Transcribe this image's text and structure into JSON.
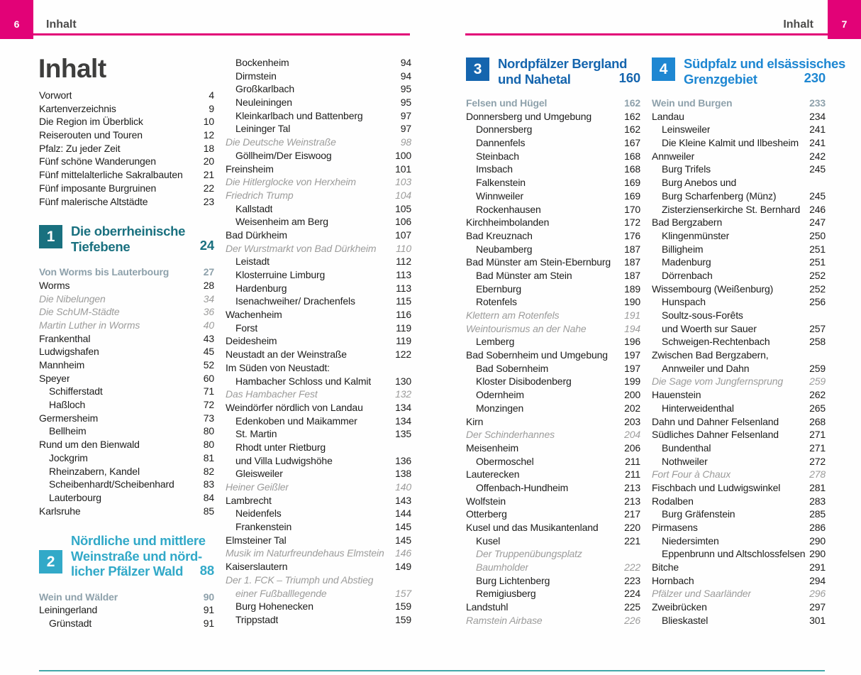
{
  "page": {
    "title": "Inhalt",
    "left_page_num": "6",
    "left_header_label": "Inhalt",
    "right_page_num": "7",
    "right_header_label": "Inhalt"
  },
  "colors": {
    "magenta": "#e20277",
    "header_text": "#4c4c4b",
    "chapter1": "#19707f",
    "chapter2": "#32a9c8",
    "chapter3": "#1565ae",
    "chapter4": "#1e87d2",
    "group_heading": "#8ea1ab",
    "entry_text": "#1c1c1b",
    "insert_italic": "#9c9c9b",
    "bottom_rule": "#43a6a8"
  },
  "columns": {
    "col1": [
      {
        "t": "e",
        "l": 0,
        "n": "Vorwort",
        "p": "4"
      },
      {
        "t": "e",
        "l": 0,
        "n": "Kartenverzeichnis",
        "p": "9"
      },
      {
        "t": "e",
        "l": 0,
        "n": "Die Region im Überblick",
        "p": "10"
      },
      {
        "t": "e",
        "l": 0,
        "n": "Reiserouten und Touren",
        "p": "12"
      },
      {
        "t": "e",
        "l": 0,
        "n": "Pfalz: Zu jeder Zeit",
        "p": "18"
      },
      {
        "t": "e",
        "l": 0,
        "n": "Fünf schöne Wanderungen",
        "p": "20"
      },
      {
        "t": "e",
        "l": 0,
        "n": "Fünf mittelalterliche Sakralbauten",
        "p": "21"
      },
      {
        "t": "e",
        "l": 0,
        "n": "Fünf imposante Burgruinen",
        "p": "22"
      },
      {
        "t": "e",
        "l": 0,
        "n": "Fünf malerische Altstädte",
        "p": "23"
      },
      {
        "t": "g",
        "h": 22
      },
      {
        "t": "s",
        "num": "1",
        "lines": [
          "Die oberrheinische",
          "Tiefebene"
        ],
        "p": "24",
        "c": "chapter1"
      },
      {
        "t": "g",
        "h": 16
      },
      {
        "t": "h",
        "n": "Von Worms bis Lauterbourg",
        "p": "27"
      },
      {
        "t": "e",
        "l": 0,
        "n": "Worms",
        "p": "28"
      },
      {
        "t": "i",
        "l": 0,
        "n": "Die Nibelungen",
        "p": "34"
      },
      {
        "t": "i",
        "l": 0,
        "n": "Die SchUM-Städte",
        "p": "36"
      },
      {
        "t": "i",
        "l": 0,
        "n": "Martin Luther in Worms",
        "p": "40"
      },
      {
        "t": "e",
        "l": 0,
        "n": "Frankenthal",
        "p": "43"
      },
      {
        "t": "e",
        "l": 0,
        "n": "Ludwigshafen",
        "p": "45"
      },
      {
        "t": "e",
        "l": 0,
        "n": "Mannheim",
        "p": "52"
      },
      {
        "t": "e",
        "l": 0,
        "n": "Speyer",
        "p": "60"
      },
      {
        "t": "e",
        "l": 1,
        "n": "Schifferstadt",
        "p": "71"
      },
      {
        "t": "e",
        "l": 1,
        "n": "Haßloch",
        "p": "72"
      },
      {
        "t": "e",
        "l": 0,
        "n": "Germersheim",
        "p": "73"
      },
      {
        "t": "e",
        "l": 1,
        "n": "Bellheim",
        "p": "80"
      },
      {
        "t": "e",
        "l": 0,
        "n": "Rund um den Bienwald",
        "p": "80"
      },
      {
        "t": "e",
        "l": 1,
        "n": "Jockgrim",
        "p": "81"
      },
      {
        "t": "e",
        "l": 1,
        "n": "Rheinzabern, Kandel",
        "p": "82"
      },
      {
        "t": "e",
        "l": 1,
        "n": "Scheibenhardt/Scheibenhard",
        "p": "83"
      },
      {
        "t": "e",
        "l": 1,
        "n": "Lauterbourg",
        "p": "84"
      },
      {
        "t": "e",
        "l": 0,
        "n": "Karlsruhe",
        "p": "85"
      },
      {
        "t": "g",
        "h": 22
      },
      {
        "t": "s",
        "num": "2",
        "lines": [
          "Nördliche und mittlere",
          "Weinstraße und nörd-",
          "licher Pfälzer Wald"
        ],
        "p": "88",
        "c": "chapter2"
      },
      {
        "t": "g",
        "h": 16
      },
      {
        "t": "h",
        "n": "Wein und Wälder",
        "p": "90"
      },
      {
        "t": "e",
        "l": 0,
        "n": "Leiningerland",
        "p": "91"
      },
      {
        "t": "e",
        "l": 1,
        "n": "Grünstadt",
        "p": "91"
      }
    ],
    "col2": [
      {
        "t": "e",
        "l": 1,
        "n": "Bockenheim",
        "p": "94"
      },
      {
        "t": "e",
        "l": 1,
        "n": "Dirmstein",
        "p": "94"
      },
      {
        "t": "e",
        "l": 1,
        "n": "Großkarlbach",
        "p": "95"
      },
      {
        "t": "e",
        "l": 1,
        "n": "Neuleiningen",
        "p": "95"
      },
      {
        "t": "e",
        "l": 1,
        "n": "Kleinkarlbach und Battenberg",
        "p": "97"
      },
      {
        "t": "e",
        "l": 1,
        "n": "Leininger Tal",
        "p": "97"
      },
      {
        "t": "i",
        "l": 0,
        "n": "Die Deutsche Weinstraße",
        "p": "98"
      },
      {
        "t": "e",
        "l": 1,
        "n": "Göllheim/Der Eiswoog",
        "p": "100"
      },
      {
        "t": "e",
        "l": 0,
        "n": "Freinsheim",
        "p": "101"
      },
      {
        "t": "i",
        "l": 0,
        "n": "Die Hitlerglocke von Herxheim",
        "p": "103"
      },
      {
        "t": "i",
        "l": 0,
        "n": "Friedrich Trump",
        "p": "104"
      },
      {
        "t": "e",
        "l": 1,
        "n": "Kallstadt",
        "p": "105"
      },
      {
        "t": "e",
        "l": 1,
        "n": "Weisenheim am Berg",
        "p": "106"
      },
      {
        "t": "e",
        "l": 0,
        "n": "Bad Dürkheim",
        "p": "107"
      },
      {
        "t": "i",
        "l": 0,
        "n": "Der Wurstmarkt von Bad Dürkheim",
        "p": "110"
      },
      {
        "t": "e",
        "l": 1,
        "n": "Leistadt",
        "p": "112"
      },
      {
        "t": "e",
        "l": 1,
        "n": "Klosterruine Limburg",
        "p": "113"
      },
      {
        "t": "e",
        "l": 1,
        "n": "Hardenburg",
        "p": "113"
      },
      {
        "t": "e",
        "l": 1,
        "n": "Isenachweiher/ Drachenfels",
        "p": "115"
      },
      {
        "t": "e",
        "l": 0,
        "n": "Wachenheim",
        "p": "116"
      },
      {
        "t": "e",
        "l": 1,
        "n": "Forst",
        "p": "119"
      },
      {
        "t": "e",
        "l": 0,
        "n": "Deidesheim",
        "p": "119"
      },
      {
        "t": "e",
        "l": 0,
        "n": "Neustadt an der Weinstraße",
        "p": "122"
      },
      {
        "t": "e",
        "l": 0,
        "n": "Im Süden von Neustadt:",
        "p": ""
      },
      {
        "t": "e",
        "l": 1,
        "n": "Hambacher Schloss und Kalmit",
        "p": "130"
      },
      {
        "t": "i",
        "l": 0,
        "n": "Das Hambacher Fest",
        "p": "132"
      },
      {
        "t": "e",
        "l": 0,
        "n": "Weindörfer nördlich von Landau",
        "p": "134"
      },
      {
        "t": "e",
        "l": 1,
        "n": "Edenkoben und Maikammer",
        "p": "134"
      },
      {
        "t": "e",
        "l": 1,
        "n": "St. Martin",
        "p": "135"
      },
      {
        "t": "e",
        "l": 1,
        "n": "Rhodt unter Rietburg",
        "p": ""
      },
      {
        "t": "e",
        "l": 1,
        "n": "und Villa Ludwigshöhe",
        "p": "136"
      },
      {
        "t": "e",
        "l": 1,
        "n": "Gleisweiler",
        "p": "138"
      },
      {
        "t": "i",
        "l": 0,
        "n": "Heiner Geißler",
        "p": "140"
      },
      {
        "t": "e",
        "l": 0,
        "n": "Lambrecht",
        "p": "143"
      },
      {
        "t": "e",
        "l": 1,
        "n": "Neidenfels",
        "p": "144"
      },
      {
        "t": "e",
        "l": 1,
        "n": "Frankenstein",
        "p": "145"
      },
      {
        "t": "e",
        "l": 0,
        "n": "Elmsteiner Tal",
        "p": "145"
      },
      {
        "t": "i",
        "l": 0,
        "n": "Musik im Naturfreundehaus Elmstein",
        "p": "146"
      },
      {
        "t": "e",
        "l": 0,
        "n": "Kaiserslautern",
        "p": "149"
      },
      {
        "t": "i",
        "l": 0,
        "n": "Der 1. FCK – Triumph und Abstieg",
        "p": ""
      },
      {
        "t": "i",
        "l": 1,
        "n": "einer Fußballlegende",
        "p": "157"
      },
      {
        "t": "e",
        "l": 1,
        "n": "Burg Hohenecken",
        "p": "159"
      },
      {
        "t": "e",
        "l": 1,
        "n": "Trippstadt",
        "p": "159"
      }
    ],
    "col3": [
      {
        "t": "s",
        "num": "3",
        "lines": [
          "Nordpfälzer Bergland",
          "und Nahetal"
        ],
        "p": "160",
        "c": "chapter3"
      },
      {
        "t": "g",
        "h": 14
      },
      {
        "t": "h",
        "n": "Felsen und Hügel",
        "p": "162"
      },
      {
        "t": "e",
        "l": 0,
        "n": "Donnersberg und Umgebung",
        "p": "162"
      },
      {
        "t": "e",
        "l": 1,
        "n": "Donnersberg",
        "p": "162"
      },
      {
        "t": "e",
        "l": 1,
        "n": "Dannenfels",
        "p": "167"
      },
      {
        "t": "e",
        "l": 1,
        "n": "Steinbach",
        "p": "168"
      },
      {
        "t": "e",
        "l": 1,
        "n": "Imsbach",
        "p": "168"
      },
      {
        "t": "e",
        "l": 1,
        "n": "Falkenstein",
        "p": "169"
      },
      {
        "t": "e",
        "l": 1,
        "n": "Winnweiler",
        "p": "169"
      },
      {
        "t": "e",
        "l": 1,
        "n": "Rockenhausen",
        "p": "170"
      },
      {
        "t": "e",
        "l": 0,
        "n": "Kirchheimbolanden",
        "p": "172"
      },
      {
        "t": "e",
        "l": 0,
        "n": "Bad Kreuznach",
        "p": "176"
      },
      {
        "t": "e",
        "l": 1,
        "n": "Neubamberg",
        "p": "187"
      },
      {
        "t": "e",
        "l": 0,
        "n": "Bad Münster am Stein-Ebernburg",
        "p": "187"
      },
      {
        "t": "e",
        "l": 1,
        "n": "Bad Münster am Stein",
        "p": "187"
      },
      {
        "t": "e",
        "l": 1,
        "n": "Ebernburg",
        "p": "189"
      },
      {
        "t": "e",
        "l": 1,
        "n": "Rotenfels",
        "p": "190"
      },
      {
        "t": "i",
        "l": 0,
        "n": "Klettern am Rotenfels",
        "p": "191"
      },
      {
        "t": "i",
        "l": 0,
        "n": "Weintourismus an der Nahe",
        "p": "194"
      },
      {
        "t": "e",
        "l": 1,
        "n": "Lemberg",
        "p": "196"
      },
      {
        "t": "e",
        "l": 0,
        "n": "Bad Sobernheim und Umgebung",
        "p": "197"
      },
      {
        "t": "e",
        "l": 1,
        "n": "Bad Sobernheim",
        "p": "197"
      },
      {
        "t": "e",
        "l": 1,
        "n": "Kloster Disibodenberg",
        "p": "199"
      },
      {
        "t": "e",
        "l": 1,
        "n": "Odernheim",
        "p": "200"
      },
      {
        "t": "e",
        "l": 1,
        "n": "Monzingen",
        "p": "202"
      },
      {
        "t": "e",
        "l": 0,
        "n": "Kirn",
        "p": "203"
      },
      {
        "t": "i",
        "l": 0,
        "n": "Der Schinderhannes",
        "p": "204"
      },
      {
        "t": "e",
        "l": 0,
        "n": "Meisenheim",
        "p": "206"
      },
      {
        "t": "e",
        "l": 1,
        "n": "Obermoschel",
        "p": "211"
      },
      {
        "t": "e",
        "l": 0,
        "n": "Lauterecken",
        "p": "211"
      },
      {
        "t": "e",
        "l": 1,
        "n": "Offenbach-Hundheim",
        "p": "213"
      },
      {
        "t": "e",
        "l": 0,
        "n": "Wolfstein",
        "p": "213"
      },
      {
        "t": "e",
        "l": 0,
        "n": "Otterberg",
        "p": "217"
      },
      {
        "t": "e",
        "l": 0,
        "n": "Kusel und das Musikantenland",
        "p": "220"
      },
      {
        "t": "e",
        "l": 1,
        "n": "Kusel",
        "p": "221"
      },
      {
        "t": "i",
        "l": 1,
        "n": "Der Truppenübungsplatz",
        "p": ""
      },
      {
        "t": "i",
        "l": 1,
        "n": "Baumholder",
        "p": "222"
      },
      {
        "t": "e",
        "l": 1,
        "n": "Burg Lichtenberg",
        "p": "223"
      },
      {
        "t": "e",
        "l": 1,
        "n": "Remigiusberg",
        "p": "224"
      },
      {
        "t": "e",
        "l": 0,
        "n": "Landstuhl",
        "p": "225"
      },
      {
        "t": "i",
        "l": 0,
        "n": "Ramstein Airbase",
        "p": "226"
      }
    ],
    "col4": [
      {
        "t": "s",
        "num": "4",
        "lines": [
          "Südpfalz und elsässisches",
          "Grenzgebiet"
        ],
        "p": "230",
        "c": "chapter4"
      },
      {
        "t": "g",
        "h": 14
      },
      {
        "t": "h",
        "n": "Wein und Burgen",
        "p": "233"
      },
      {
        "t": "e",
        "l": 0,
        "n": "Landau",
        "p": "234"
      },
      {
        "t": "e",
        "l": 1,
        "n": "Leinsweiler",
        "p": "241"
      },
      {
        "t": "e",
        "l": 1,
        "n": "Die Kleine Kalmit und Ilbesheim",
        "p": "241"
      },
      {
        "t": "e",
        "l": 0,
        "n": "Annweiler",
        "p": "242"
      },
      {
        "t": "e",
        "l": 1,
        "n": "Burg Trifels",
        "p": "245"
      },
      {
        "t": "e",
        "l": 1,
        "n": "Burg Anebos und",
        "p": ""
      },
      {
        "t": "e",
        "l": 1,
        "n": "Burg Scharfenberg (Münz)",
        "p": "245"
      },
      {
        "t": "e",
        "l": 1,
        "n": "Zisterzienserkirche St. Bernhard",
        "p": "246"
      },
      {
        "t": "e",
        "l": 0,
        "n": "Bad Bergzabern",
        "p": "247"
      },
      {
        "t": "e",
        "l": 1,
        "n": "Klingenmünster",
        "p": "250"
      },
      {
        "t": "e",
        "l": 1,
        "n": "Billigheim",
        "p": "251"
      },
      {
        "t": "e",
        "l": 1,
        "n": "Madenburg",
        "p": "251"
      },
      {
        "t": "e",
        "l": 1,
        "n": "Dörrenbach",
        "p": "252"
      },
      {
        "t": "e",
        "l": 0,
        "n": "Wissembourg (Weißenburg)",
        "p": "252"
      },
      {
        "t": "e",
        "l": 1,
        "n": "Hunspach",
        "p": "256"
      },
      {
        "t": "e",
        "l": 1,
        "n": "Soultz-sous-Forêts",
        "p": ""
      },
      {
        "t": "e",
        "l": 1,
        "n": "und Woerth sur Sauer",
        "p": "257"
      },
      {
        "t": "e",
        "l": 1,
        "n": "Schweigen-Rechtenbach",
        "p": "258"
      },
      {
        "t": "e",
        "l": 0,
        "n": "Zwischen Bad Bergzabern,",
        "p": ""
      },
      {
        "t": "e",
        "l": 1,
        "n": "Annweiler und Dahn",
        "p": "259"
      },
      {
        "t": "i",
        "l": 0,
        "n": "Die Sage vom Jungfernsprung",
        "p": "259"
      },
      {
        "t": "e",
        "l": 0,
        "n": "Hauenstein",
        "p": "262"
      },
      {
        "t": "e",
        "l": 1,
        "n": "Hinterweidenthal",
        "p": "265"
      },
      {
        "t": "e",
        "l": 0,
        "n": "Dahn und Dahner Felsenland",
        "p": "268"
      },
      {
        "t": "e",
        "l": 0,
        "n": "Südliches Dahner Felsenland",
        "p": "271"
      },
      {
        "t": "e",
        "l": 1,
        "n": "Bundenthal",
        "p": "271"
      },
      {
        "t": "e",
        "l": 1,
        "n": "Nothweiler",
        "p": "272"
      },
      {
        "t": "i",
        "l": 0,
        "n": "Fort Four à Chaux",
        "p": "278"
      },
      {
        "t": "e",
        "l": 0,
        "n": "Fischbach und Ludwigswinkel",
        "p": "281"
      },
      {
        "t": "e",
        "l": 0,
        "n": "Rodalben",
        "p": "283"
      },
      {
        "t": "e",
        "l": 1,
        "n": "Burg Gräfenstein",
        "p": "285"
      },
      {
        "t": "e",
        "l": 0,
        "n": "Pirmasens",
        "p": "286"
      },
      {
        "t": "e",
        "l": 1,
        "n": "Niedersimten",
        "p": "290"
      },
      {
        "t": "e",
        "l": 1,
        "n": "Eppenbrunn und Altschlossfelsen",
        "p": "290"
      },
      {
        "t": "e",
        "l": 0,
        "n": "Bitche",
        "p": "291"
      },
      {
        "t": "e",
        "l": 0,
        "n": "Hornbach",
        "p": "294"
      },
      {
        "t": "i",
        "l": 0,
        "n": "Pfälzer und Saarländer",
        "p": "296"
      },
      {
        "t": "e",
        "l": 0,
        "n": "Zweibrücken",
        "p": "297"
      },
      {
        "t": "e",
        "l": 1,
        "n": "Blieskastel",
        "p": "301"
      }
    ]
  }
}
